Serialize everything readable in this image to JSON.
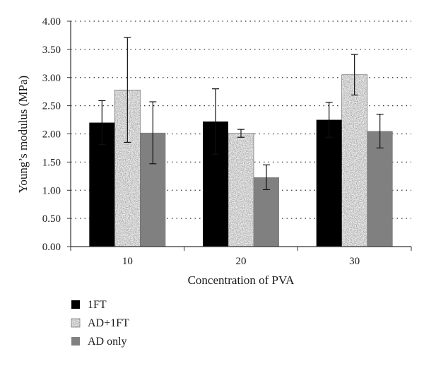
{
  "chart_data": {
    "type": "bar",
    "title": "",
    "xlabel": "Concentration of PVA",
    "ylabel": "Young’s modulus (MPa)",
    "categories": [
      "10",
      "20",
      "30"
    ],
    "ylim": [
      0,
      4
    ],
    "yticks": [
      "0.00",
      "0.50",
      "1.00",
      "1.50",
      "2.00",
      "2.50",
      "3.00",
      "3.50",
      "4.00"
    ],
    "grid": "horizontal dotted",
    "legend_position": "bottom-left",
    "series": [
      {
        "name": "1FT",
        "values": [
          2.2,
          2.22,
          2.25
        ],
        "errors": [
          0.39,
          0.58,
          0.31
        ],
        "color": "#000000",
        "pattern": "solid"
      },
      {
        "name": "AD+1FT",
        "values": [
          2.78,
          2.01,
          3.05
        ],
        "errors": [
          0.93,
          0.07,
          0.36
        ],
        "color": "#b4b4b4",
        "pattern": "speckled"
      },
      {
        "name": "AD only",
        "values": [
          2.02,
          1.23,
          2.05
        ],
        "errors": [
          0.55,
          0.22,
          0.3
        ],
        "color": "#808080",
        "pattern": "solid"
      }
    ]
  }
}
